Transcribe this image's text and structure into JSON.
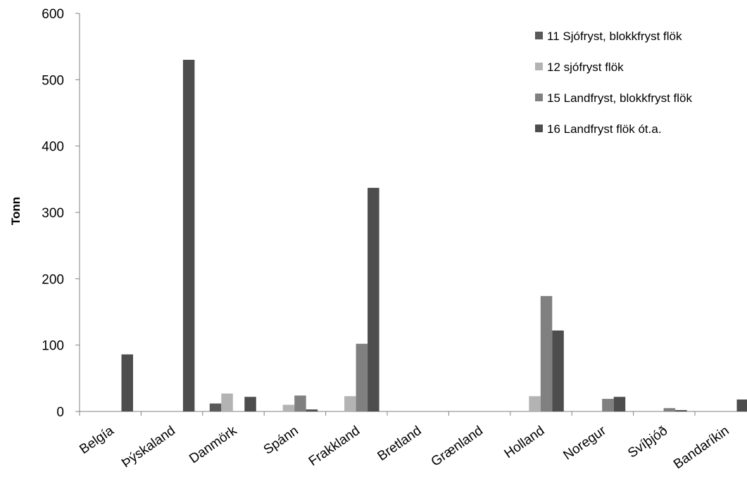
{
  "chart_data": {
    "type": "bar",
    "title": "",
    "xlabel": "",
    "ylabel": "Tonn",
    "ylim": [
      0,
      600
    ],
    "yticks": [
      0,
      100,
      200,
      300,
      400,
      500,
      600
    ],
    "grid": false,
    "legend_position": "top-right",
    "categories": [
      "Belgía",
      "Þýskaland",
      "Danmörk",
      "Spánn",
      "Frakkland",
      "Bretland",
      "Grænland",
      "Holland",
      "Noregur",
      "Svíþjóð",
      "Bandaríkin"
    ],
    "series": [
      {
        "name": "11 Sjófryst, blokkfryst flök",
        "color": "#595959",
        "values": [
          0,
          0,
          12,
          0,
          0,
          0,
          0,
          0,
          0,
          0,
          0
        ]
      },
      {
        "name": "12 sjófryst flök",
        "color": "#b3b3b3",
        "values": [
          0,
          0,
          27,
          10,
          23,
          0,
          0,
          23,
          0,
          0,
          0
        ]
      },
      {
        "name": "15 Landfryst, blokkfryst flök",
        "color": "#808080",
        "values": [
          0,
          0,
          0,
          24,
          102,
          0,
          0,
          174,
          19,
          5,
          0
        ]
      },
      {
        "name": "16 Landfryst flök ót.a.",
        "color": "#4d4d4d",
        "values": [
          86,
          530,
          22,
          3,
          337,
          0,
          0,
          122,
          22,
          2,
          18
        ]
      }
    ]
  }
}
